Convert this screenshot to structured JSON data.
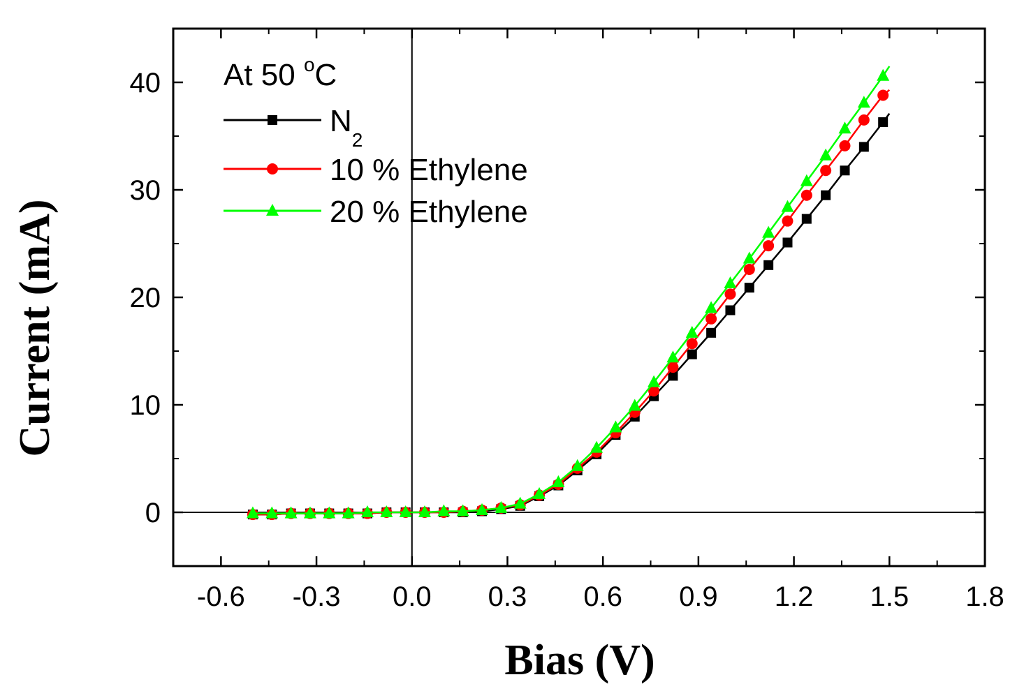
{
  "chart_data": {
    "type": "line",
    "title": "",
    "xlabel": "Bias (V)",
    "ylabel": "Current (mA)",
    "xlim": [
      -0.75,
      1.8
    ],
    "ylim": [
      -5,
      45
    ],
    "xticks": [
      -0.6,
      -0.3,
      0.0,
      0.3,
      0.6,
      0.9,
      1.2,
      1.5,
      1.8
    ],
    "xtick_labels": [
      "-0.6",
      "-0.3",
      "0.0",
      "0.3",
      "0.6",
      "0.9",
      "1.2",
      "1.5",
      "1.8"
    ],
    "yticks": [
      0,
      10,
      20,
      30,
      40
    ],
    "ytick_labels": [
      "0",
      "10",
      "20",
      "30",
      "40"
    ],
    "grid": false,
    "zero_lines": true,
    "legend_title": "At 50 °C",
    "legend_title_parts": {
      "text": "At 50 ",
      "sup": "o",
      "unit": "C"
    },
    "legend_position": "top-left",
    "x": [
      -0.5,
      -0.44,
      -0.38,
      -0.32,
      -0.26,
      -0.2,
      -0.14,
      -0.08,
      -0.02,
      0.04,
      0.1,
      0.16,
      0.22,
      0.28,
      0.34,
      0.4,
      0.46,
      0.52,
      0.58,
      0.64,
      0.7,
      0.76,
      0.82,
      0.88,
      0.94,
      1.0,
      1.06,
      1.12,
      1.18,
      1.24,
      1.3,
      1.36,
      1.42,
      1.48
    ],
    "series": [
      {
        "name": "N2",
        "label_main": "N",
        "label_sub": "2",
        "color": "#000000",
        "marker": "square",
        "line_end": [
          1.5,
          37.1
        ],
        "values": [
          -0.2,
          -0.2,
          -0.1,
          -0.1,
          -0.1,
          -0.1,
          -0.1,
          0.0,
          0.0,
          0.0,
          0.0,
          0.0,
          0.1,
          0.3,
          0.6,
          1.5,
          2.5,
          3.9,
          5.4,
          7.2,
          8.9,
          10.8,
          12.7,
          14.7,
          16.7,
          18.8,
          20.9,
          23.0,
          25.1,
          27.3,
          29.5,
          31.8,
          34.0,
          36.3
        ]
      },
      {
        "name": "10 % Ethylene",
        "label_main": "10 % Ethylene",
        "label_sub": "",
        "color": "#ff0000",
        "marker": "circle",
        "line_end": [
          1.5,
          39.3
        ],
        "values": [
          -0.2,
          -0.2,
          -0.1,
          -0.1,
          -0.1,
          -0.1,
          -0.1,
          0.0,
          0.0,
          0.0,
          0.0,
          0.1,
          0.2,
          0.4,
          0.7,
          1.6,
          2.6,
          4.1,
          5.6,
          7.4,
          9.3,
          11.3,
          13.5,
          15.7,
          18.0,
          20.3,
          22.6,
          24.8,
          27.1,
          29.5,
          31.8,
          34.1,
          36.5,
          38.8
        ]
      },
      {
        "name": "20 % Ethylene",
        "label_main": "20 % Ethylene",
        "label_sub": "",
        "color": "#00ff00",
        "marker": "triangle",
        "line_end": [
          1.5,
          41.5
        ],
        "values": [
          -0.1,
          -0.1,
          -0.1,
          -0.1,
          -0.1,
          -0.1,
          0.0,
          0.0,
          0.0,
          0.0,
          0.1,
          0.1,
          0.2,
          0.4,
          0.8,
          1.7,
          2.8,
          4.3,
          6.0,
          7.9,
          9.9,
          12.1,
          14.4,
          16.7,
          19.0,
          21.3,
          23.6,
          26.0,
          28.4,
          30.8,
          33.2,
          35.7,
          38.1,
          40.6
        ]
      }
    ]
  }
}
